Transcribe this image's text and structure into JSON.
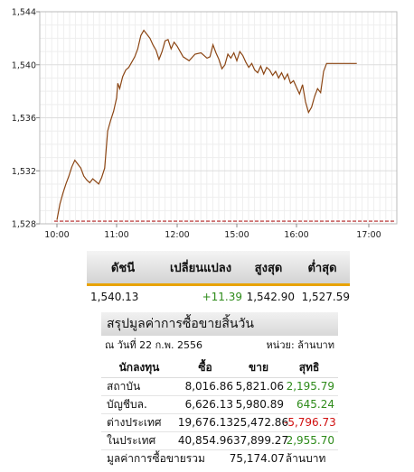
{
  "chart_data": {
    "type": "line",
    "ylim": [
      1528,
      1544
    ],
    "yticks": [
      "1,544",
      "1,540",
      "1,536",
      "1,532",
      "1,528"
    ],
    "yticks_values": [
      1544,
      1540,
      1536,
      1532,
      1528
    ],
    "xticks": [
      "10:00",
      "11:00",
      "12:00",
      "15:00",
      "16:00",
      "17:00"
    ],
    "grid": true,
    "reference_line": {
      "value": 1528.2,
      "color": "#b22222",
      "style": "dashed"
    },
    "series": [
      {
        "color": "#8b4513",
        "x_hours": [
          10.0,
          10.05,
          10.1,
          10.15,
          10.2,
          10.25,
          10.3,
          10.35,
          10.4,
          10.45,
          10.5,
          10.55,
          10.6,
          10.65,
          10.7,
          10.75,
          10.8,
          10.85,
          10.9,
          10.95,
          11.0,
          11.02,
          11.05,
          11.1,
          11.15,
          11.2,
          11.25,
          11.3,
          11.35,
          11.4,
          11.45,
          11.5,
          11.55,
          11.6,
          11.65,
          11.7,
          11.75,
          11.8,
          11.85,
          11.9,
          11.95,
          12.0,
          12.1,
          12.2,
          12.3,
          12.4,
          12.5,
          12.55,
          12.6,
          12.65,
          12.7,
          12.75,
          12.8,
          12.85,
          12.9,
          12.95,
          13.0,
          13.05,
          13.1,
          13.15,
          13.2,
          13.25,
          13.3,
          13.35,
          13.4,
          13.45,
          13.5,
          13.55,
          13.6,
          13.65,
          13.7,
          13.75,
          13.8,
          13.85,
          13.9,
          13.95,
          14.0,
          14.05,
          14.1,
          14.15,
          14.2,
          14.25,
          14.3,
          14.35,
          14.4,
          14.45,
          14.5,
          14.55,
          14.6,
          14.7,
          14.8,
          15.0
        ],
        "y": [
          1528.3,
          1529.5,
          1530.3,
          1531.0,
          1531.6,
          1532.3,
          1532.8,
          1532.5,
          1532.2,
          1531.6,
          1531.3,
          1531.1,
          1531.4,
          1531.2,
          1531.0,
          1531.5,
          1532.2,
          1535.0,
          1535.8,
          1536.5,
          1537.5,
          1538.6,
          1538.2,
          1539.1,
          1539.6,
          1539.8,
          1540.2,
          1540.6,
          1541.2,
          1542.2,
          1542.6,
          1542.3,
          1542.0,
          1541.5,
          1541.1,
          1540.4,
          1541.0,
          1541.8,
          1541.9,
          1541.2,
          1541.7,
          1541.4,
          1540.6,
          1540.3,
          1540.8,
          1540.9,
          1540.5,
          1540.6,
          1541.5,
          1540.9,
          1540.4,
          1539.7,
          1540.0,
          1540.8,
          1540.5,
          1540.9,
          1540.3,
          1541.0,
          1540.7,
          1540.2,
          1539.8,
          1540.1,
          1539.6,
          1539.4,
          1539.9,
          1539.3,
          1539.8,
          1539.6,
          1539.2,
          1539.5,
          1539.0,
          1539.4,
          1538.9,
          1539.3,
          1538.6,
          1538.8,
          1538.3,
          1537.8,
          1538.5,
          1537.2,
          1536.4,
          1536.8,
          1537.6,
          1538.2,
          1537.9,
          1539.5,
          1540.1,
          1540.1,
          1540.1,
          1540.1,
          1540.1,
          1540.1
        ]
      }
    ]
  },
  "index_table": {
    "headers": [
      "ดัชนี",
      "เปลี่ยนแปลง",
      "สูงสุด",
      "ต่ำสุด"
    ],
    "row": [
      "1,540.13",
      "+11.39",
      "1,542.90",
      "1,527.59"
    ]
  },
  "summary": {
    "title": "สรุปมูลค่าการซื้อขายสิ้นวัน",
    "date": "ณ วันที่ 22 ก.พ. 2556",
    "unit": "หน่วย: ล้านบาท",
    "headers": [
      "นักลงทุน",
      "ซื้อ",
      "ขาย",
      "สุทธิ"
    ],
    "rows": [
      [
        "สถาบัน",
        "8,016.86",
        "5,821.06",
        "2,195.79"
      ],
      [
        "บัญชีบล.",
        "6,626.13",
        "5,980.89",
        "645.24"
      ],
      [
        "ต่างประเทศ",
        "19,676.13",
        "25,472.86",
        "-5,796.73"
      ],
      [
        "ในประเทศ",
        "40,854.96",
        "37,899.27",
        "2,955.70"
      ]
    ],
    "total_label": "มูลค่าการซื้อขายรวม",
    "total_value": "75,174.07",
    "total_unit": "ล้านบาท"
  },
  "colors": {
    "positive": "#2e8b1a",
    "negative": "#d01010",
    "accent": "#e8a300"
  }
}
